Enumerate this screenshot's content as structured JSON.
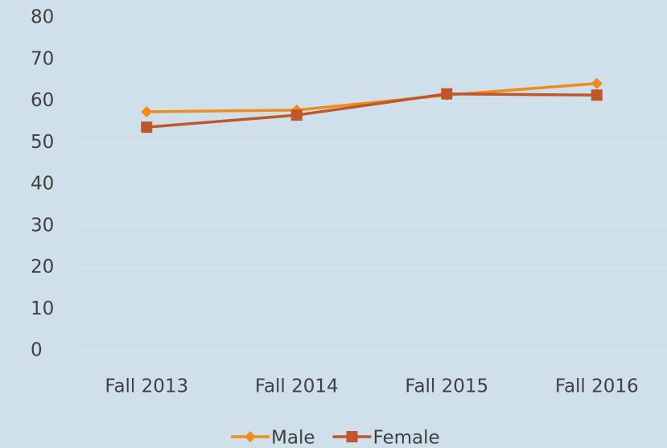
{
  "chart_data": {
    "type": "line",
    "categories": [
      "Fall 2013",
      "Fall 2014",
      "Fall 2015",
      "Fall 2016"
    ],
    "series": [
      {
        "name": "Male",
        "color": "#ee8c1c",
        "marker": "diamond",
        "values": [
          57.4,
          57.8,
          61.4,
          64.2
        ]
      },
      {
        "name": "Female",
        "color": "#c0562b",
        "marker": "square",
        "values": [
          53.7,
          56.6,
          61.7,
          61.4
        ]
      }
    ],
    "ylim": [
      0,
      80
    ],
    "yticks": [
      0,
      10,
      20,
      30,
      40,
      50,
      60,
      70,
      80
    ],
    "grid": true,
    "legend": "bottom"
  }
}
